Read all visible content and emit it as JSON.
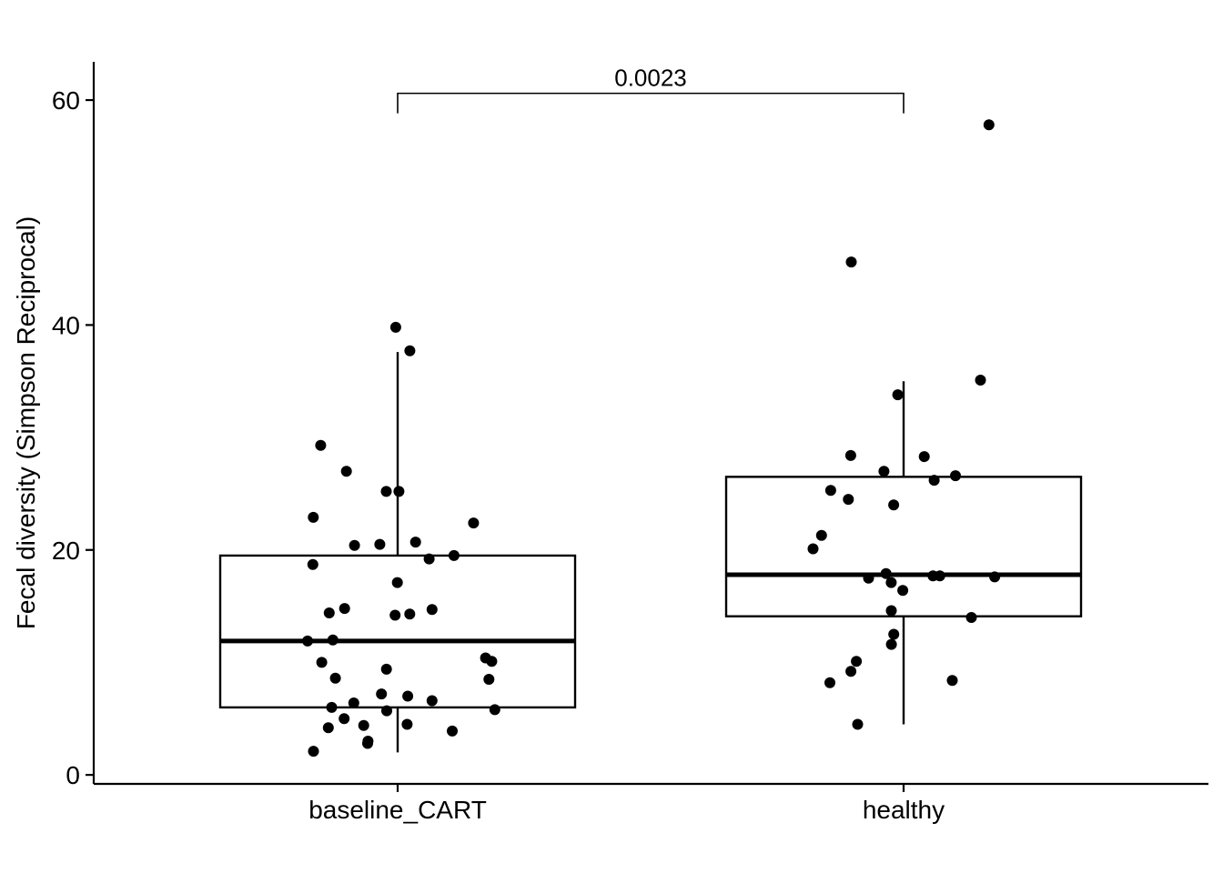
{
  "chart_data": {
    "type": "boxplot",
    "xlabel": "",
    "ylabel": "Fecal diversity (Simpson Reciprocal)",
    "ylim": [
      -0.8,
      63.4
    ],
    "yticks": [
      0,
      20,
      40,
      60
    ],
    "categories": [
      "baseline_CART",
      "healthy"
    ],
    "grid": false,
    "legend": "none",
    "colors": {
      "points": "#000000",
      "box_fill": "#ffffff",
      "box_stroke": "#000000"
    },
    "boxes": [
      {
        "category": "baseline_CART",
        "q1": 6.0,
        "median": 11.9,
        "q3": 19.5,
        "whisker_low": 2.0,
        "whisker_high": 37.6
      },
      {
        "category": "healthy",
        "q1": 14.1,
        "median": 17.8,
        "q3": 26.5,
        "whisker_low": 4.5,
        "whisker_high": 35.0
      }
    ],
    "points": [
      {
        "category": "baseline_CART",
        "values": [
          39.8,
          37.7,
          29.3,
          27.0,
          25.2,
          25.2,
          22.9,
          22.4,
          20.7,
          20.5,
          20.4,
          19.5,
          19.2,
          18.7,
          17.1,
          14.8,
          14.7,
          14.4,
          14.3,
          14.2,
          12.0,
          11.9,
          10.4,
          10.1,
          10.0,
          9.4,
          8.5,
          8.6,
          7.2,
          7.0,
          6.6,
          6.4,
          6.0,
          5.8,
          5.7,
          5.0,
          4.5,
          4.4,
          4.2,
          3.9,
          3.0,
          2.8,
          2.1
        ]
      },
      {
        "category": "healthy",
        "values": [
          57.8,
          45.6,
          35.1,
          33.8,
          28.4,
          28.3,
          27.0,
          26.6,
          26.2,
          25.3,
          24.5,
          24.0,
          21.3,
          20.1,
          17.9,
          17.7,
          17.7,
          17.6,
          17.5,
          17.1,
          16.4,
          14.6,
          14.0,
          12.5,
          11.6,
          10.1,
          9.2,
          8.4,
          8.2,
          4.5
        ]
      }
    ],
    "comparison": {
      "groups": [
        "baseline_CART",
        "healthy"
      ],
      "label": "0.0023",
      "y": 60.6
    }
  }
}
